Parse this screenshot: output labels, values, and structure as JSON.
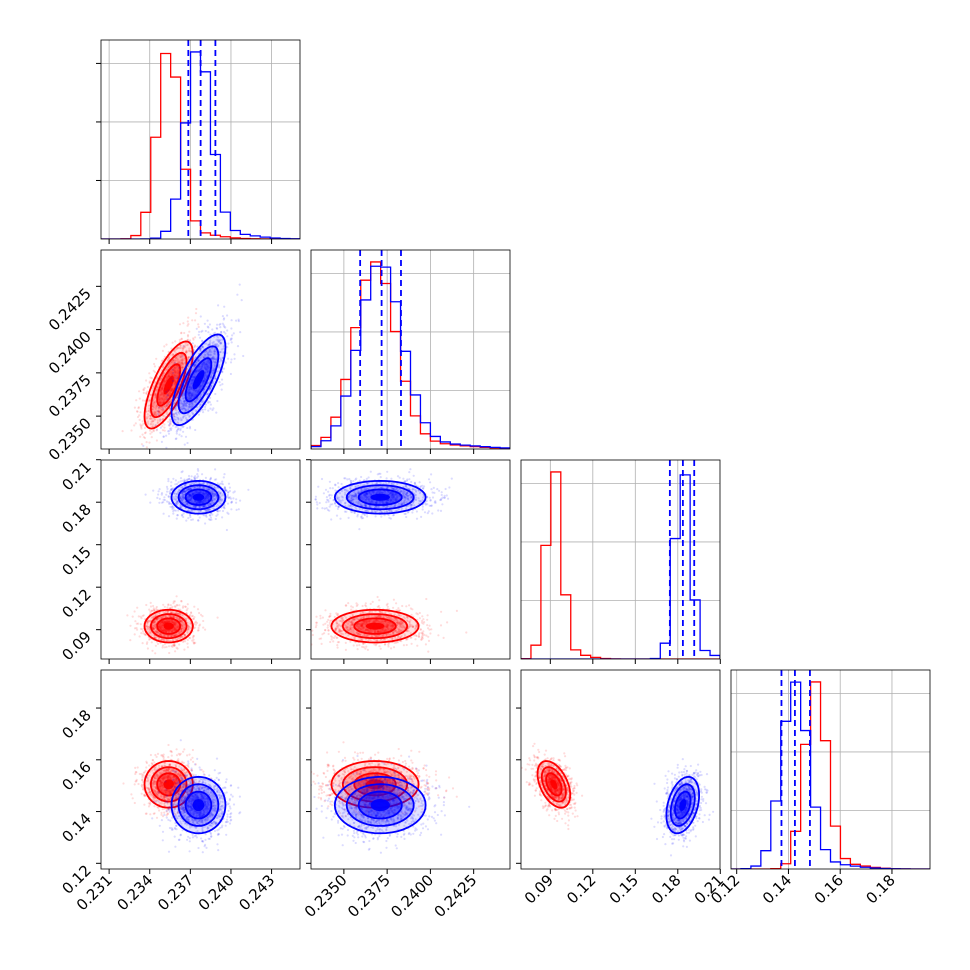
{
  "chart_data": {
    "type": "corner",
    "grid": true,
    "series": [
      {
        "color": "#ff0000",
        "centers": [
          0.2354,
          0.2368,
          0.0925,
          0.1505
        ],
        "sd": [
          0.00085,
          0.0012,
          0.0055,
          0.0043
        ],
        "corr": [
          [
            1,
            0.72,
            0,
            0
          ],
          [
            0.72,
            1,
            0,
            0
          ],
          [
            0,
            0,
            1,
            -0.45
          ],
          [
            0,
            0,
            -0.45,
            1
          ]
        ]
      },
      {
        "color": "#0000ff",
        "centers": [
          0.2376,
          0.2371,
          0.1835,
          0.1425
        ],
        "sd": [
          0.00095,
          0.00125,
          0.0055,
          0.0052
        ],
        "corr": [
          [
            1,
            0.72,
            0,
            0
          ],
          [
            0.72,
            1,
            0,
            0
          ],
          [
            0,
            0,
            1,
            0.35
          ],
          [
            0,
            0,
            0.35,
            1
          ]
        ]
      }
    ],
    "quantile_lines": [
      [
        0.23685,
        0.23776,
        0.23885
      ],
      [
        0.23594,
        0.23718,
        0.2383
      ],
      [
        0.1744,
        0.1836,
        0.1916
      ],
      [
        0.1373,
        0.1425,
        0.1483
      ]
    ],
    "quantile_color": "#0000ff",
    "params": [
      {
        "range": [
          0.2304,
          0.2451
        ],
        "ticks": [
          0.231,
          0.234,
          0.237,
          0.24,
          0.243
        ],
        "tick_labels": [
          "0.231",
          "0.234",
          "0.237",
          "0.240",
          "0.243"
        ]
      },
      {
        "range": [
          0.2331,
          0.2446
        ],
        "ticks": [
          0.235,
          0.2375,
          0.24,
          0.2425
        ],
        "tick_labels": [
          "0.2350",
          "0.2375",
          "0.2400",
          "0.2425"
        ]
      },
      {
        "range": [
          0.0693,
          0.2098
        ],
        "ticks": [
          0.09,
          0.12,
          0.15,
          0.18,
          0.21
        ],
        "tick_labels": [
          "0.09",
          "0.12",
          "0.15",
          "0.18",
          "0.21"
        ]
      },
      {
        "range": [
          0.1178,
          0.1947
        ],
        "ticks": [
          0.12,
          0.14,
          0.16,
          0.18
        ],
        "tick_labels": [
          "0.12",
          "0.14",
          "0.16",
          "0.18"
        ]
      }
    ]
  }
}
